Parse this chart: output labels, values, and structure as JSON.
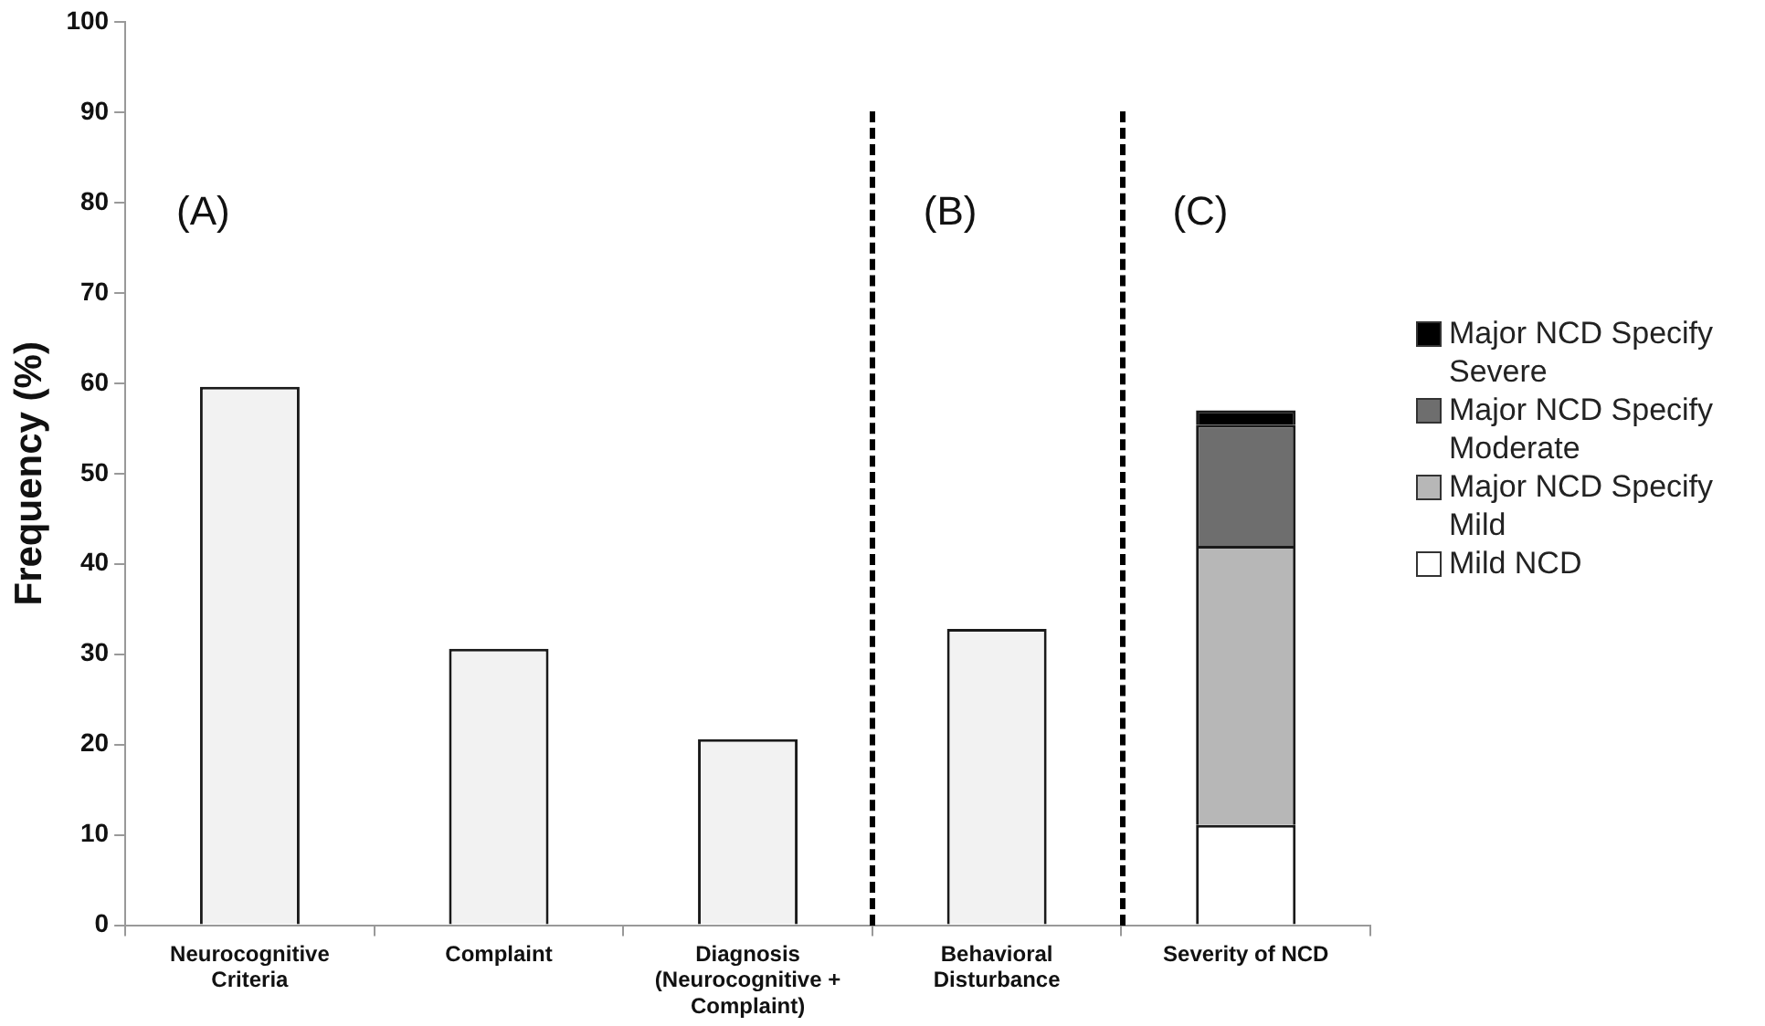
{
  "chart_data": {
    "type": "bar",
    "ylabel": "Frequency (%)",
    "categories": [
      "Neurocognitive Criteria",
      "Complaint",
      "Diagnosis (Neurocognitive + Complaint)",
      "Behavioral Disturbance",
      "Severity of NCD"
    ],
    "series": [
      {
        "color": "#f2f2f2",
        "values": [
          59.6,
          30.6,
          20.6,
          32.8,
          null
        ]
      },
      {
        "name": "Mild NCD",
        "color": "#ffffff",
        "values": [
          null,
          null,
          null,
          null,
          11.1
        ]
      },
      {
        "name": "Major NCD Specify Mild",
        "color": "#b7b7b7",
        "values": [
          null,
          null,
          null,
          null,
          30.9
        ]
      },
      {
        "name": "Major NCD Specify Moderate",
        "color": "#6e6e6e",
        "values": [
          null,
          null,
          null,
          null,
          13.4
        ]
      },
      {
        "name": "Major NCD Specify Severe",
        "color": "#000000",
        "values": [
          null,
          null,
          null,
          null,
          1.6
        ]
      }
    ],
    "stacked": true,
    "ylim": [
      0,
      100
    ],
    "yticks": [
      0,
      10,
      20,
      30,
      40,
      50,
      60,
      70,
      80,
      90,
      100
    ],
    "grid": false,
    "legend": "right",
    "annotations": [
      "(A)",
      "(B)",
      "(C)"
    ]
  }
}
